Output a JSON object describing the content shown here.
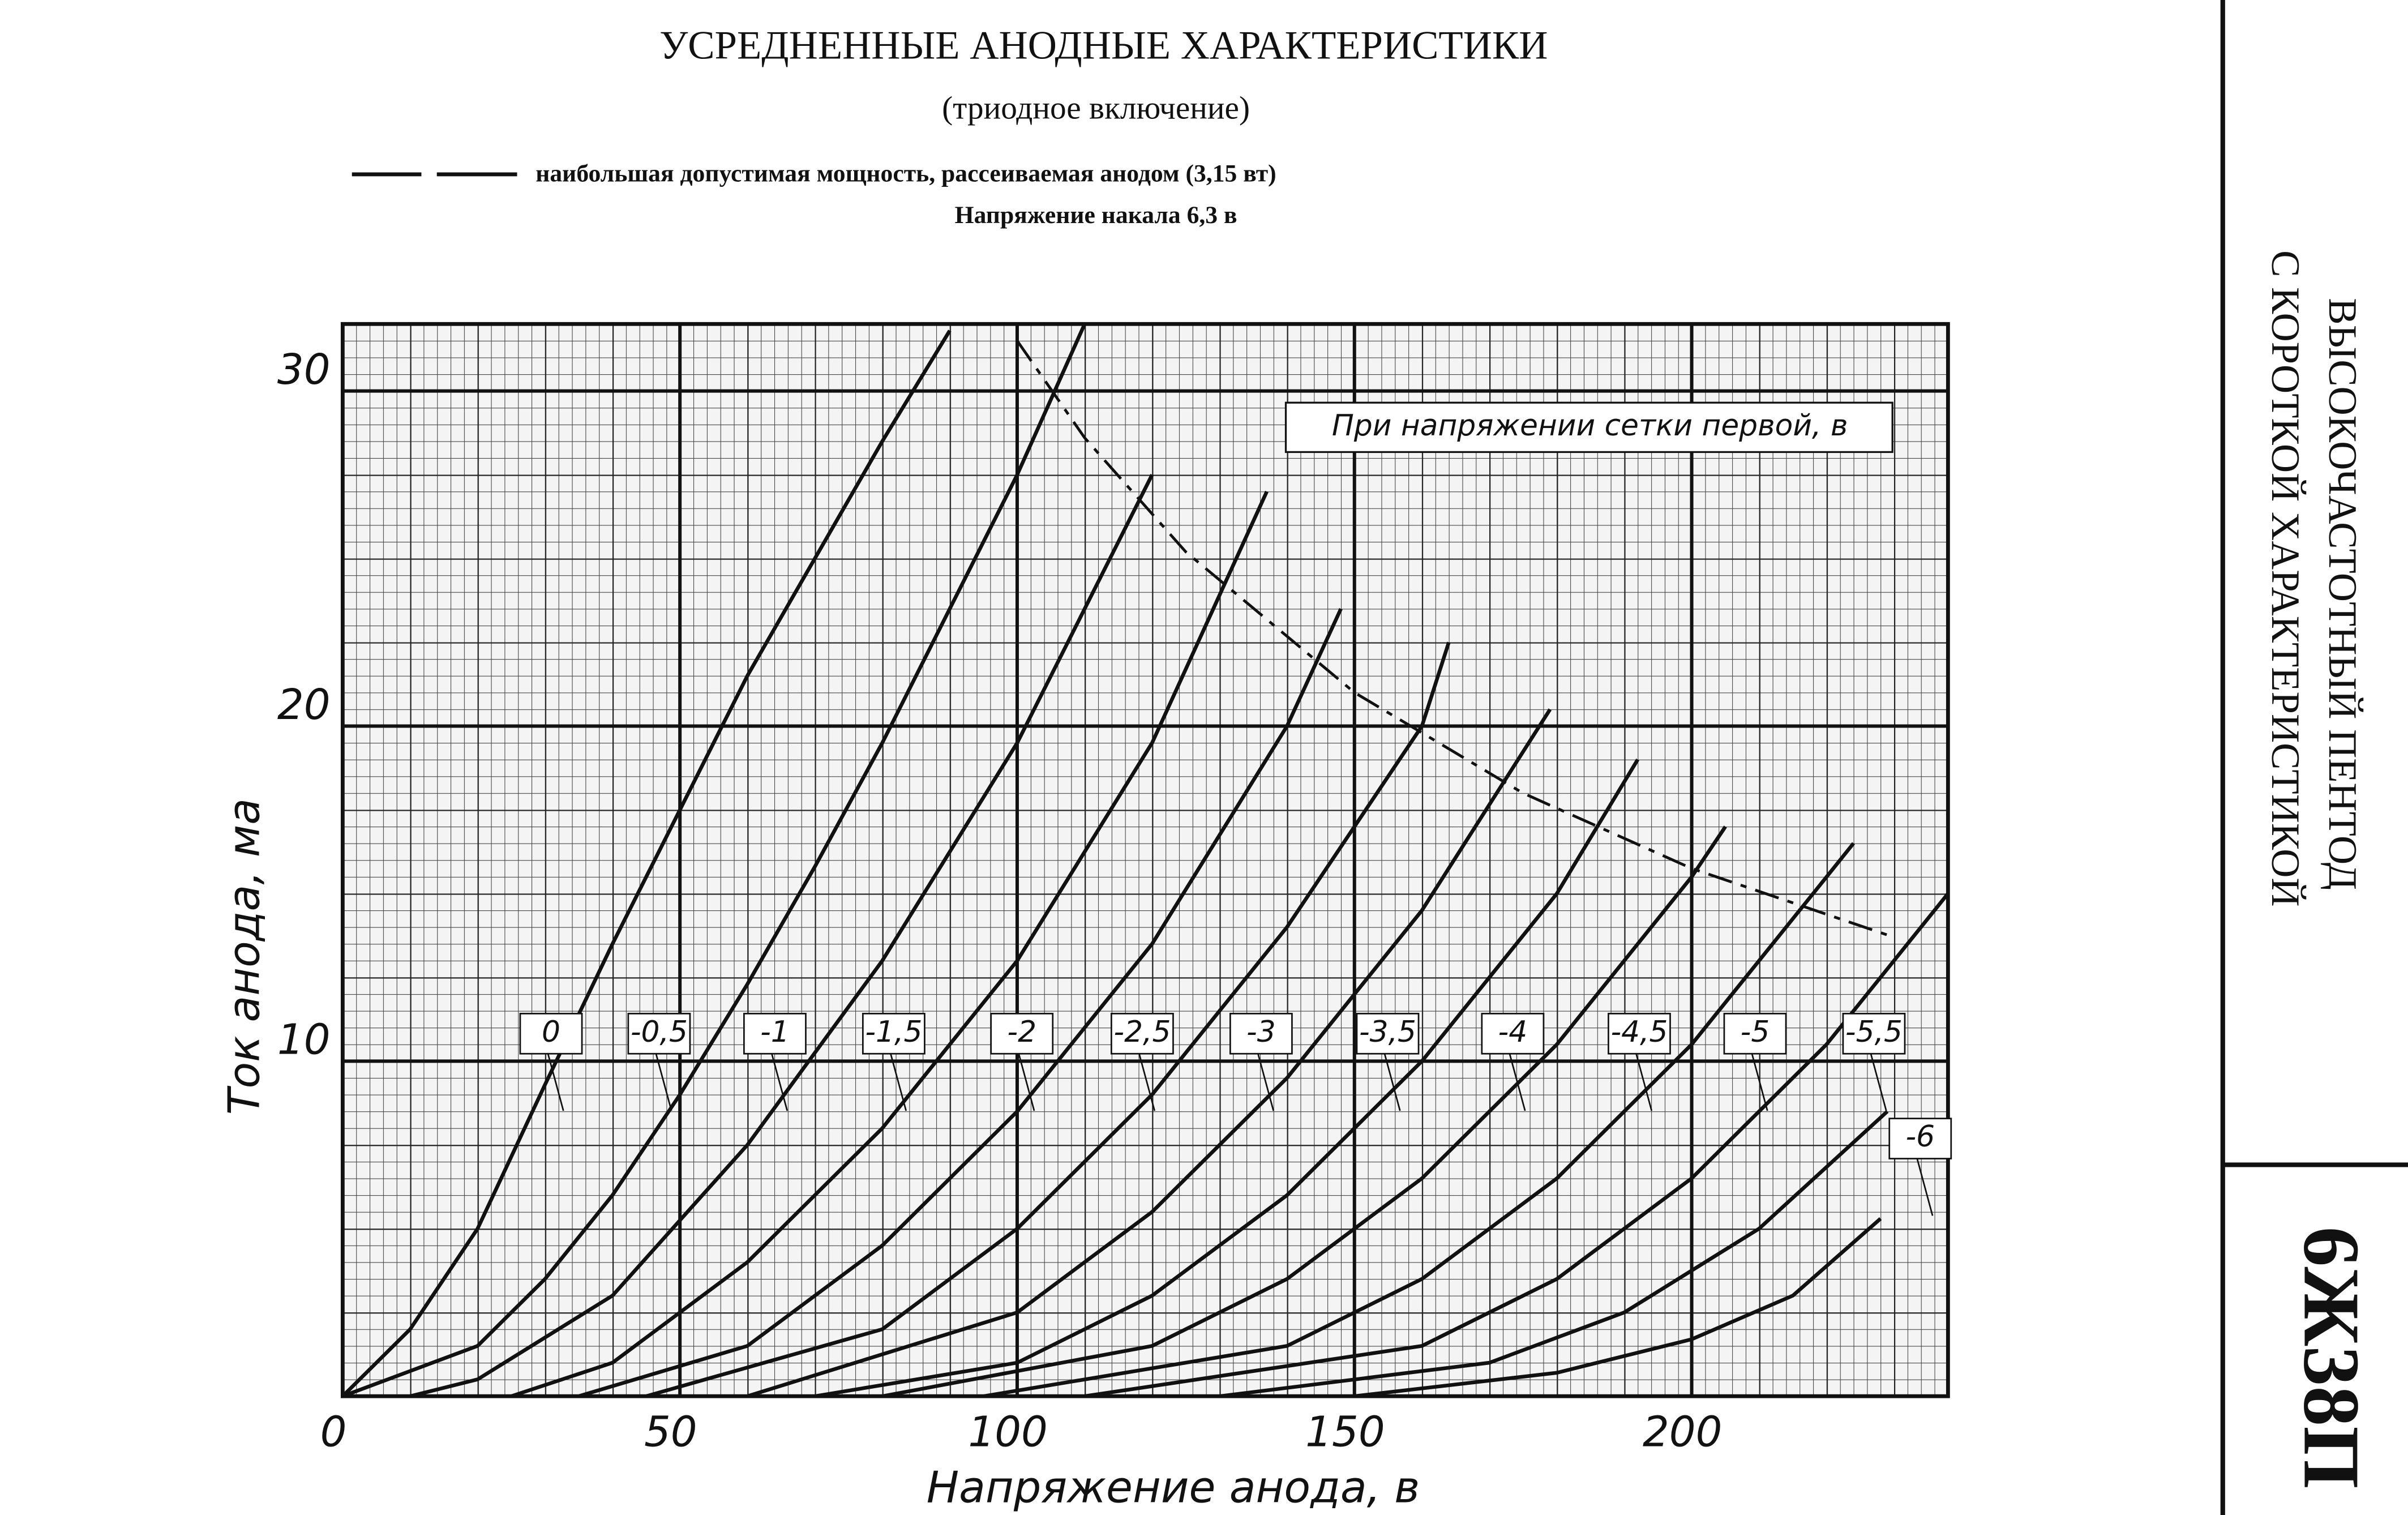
{
  "header": {
    "side_title_1": "ВЫСОКОЧАСТОТНЫЙ ПЕНТОД",
    "side_title_2": "С КОРОТКОЙ ХАРАКТЕРИСТИКОЙ",
    "tube": "6Ж38П"
  },
  "chart_data": {
    "type": "line",
    "title": "УСРЕДНЕННЫЕ АНОДНЫЕ ХАРАКТЕРИСТИКИ",
    "subtitle": "(триодное включение)",
    "annotations": [
      "Напряжение накала 6,3 в",
      "При напряжении сетки первой, в"
    ],
    "x_label": "Напряжение анода, в",
    "y_label": "Ток анода, ма",
    "xlim": [
      0,
      238
    ],
    "ylim": [
      0,
      32
    ],
    "xticks": [
      0,
      50,
      100,
      150,
      200
    ],
    "yticks": [
      10,
      20,
      30
    ],
    "grid": true,
    "series": [
      {
        "name": "0",
        "color": "#111",
        "x": [
          0,
          10,
          20,
          30,
          40,
          50,
          60,
          70,
          80,
          90
        ],
        "values": [
          0,
          2,
          5,
          9.3,
          13.5,
          17.5,
          21.5,
          25,
          28.5,
          31.8
        ]
      },
      {
        "name": "-0,5",
        "color": "#111",
        "x": [
          0,
          20,
          30,
          40,
          50,
          60,
          70,
          80,
          90,
          100,
          110
        ],
        "values": [
          0,
          1.5,
          3.5,
          6,
          9,
          12.3,
          15.8,
          19.5,
          23.5,
          27.5,
          32
        ]
      },
      {
        "name": "-1",
        "color": "#111",
        "x": [
          10,
          20,
          40,
          60,
          80,
          100,
          120
        ],
        "values": [
          0,
          0.5,
          3,
          7.5,
          13,
          19.5,
          27.5
        ]
      },
      {
        "name": "-1,5",
        "color": "#111",
        "x": [
          25,
          40,
          60,
          80,
          100,
          120,
          137
        ],
        "values": [
          0,
          1,
          4,
          8,
          13,
          19.5,
          27
        ]
      },
      {
        "name": "-2",
        "color": "#111",
        "x": [
          35,
          60,
          80,
          100,
          120,
          140,
          148
        ],
        "values": [
          0,
          1.5,
          4.5,
          8.5,
          13.5,
          20,
          23.5
        ]
      },
      {
        "name": "-2,5",
        "color": "#111",
        "x": [
          45,
          80,
          100,
          120,
          140,
          160,
          164
        ],
        "values": [
          0,
          2,
          5,
          9,
          14,
          20,
          22.5
        ]
      },
      {
        "name": "-3",
        "color": "#111",
        "x": [
          60,
          100,
          120,
          140,
          160,
          179
        ],
        "values": [
          0,
          2.5,
          5.5,
          9.5,
          14.5,
          20.5
        ]
      },
      {
        "name": "-3,5",
        "color": "#111",
        "x": [
          70,
          100,
          120,
          140,
          160,
          180,
          192
        ],
        "values": [
          0,
          1,
          3,
          6,
          10,
          15,
          19
        ]
      },
      {
        "name": "-4",
        "color": "#111",
        "x": [
          80,
          120,
          140,
          160,
          180,
          200,
          205
        ],
        "values": [
          0,
          1.5,
          3.5,
          6.5,
          10.5,
          15.5,
          17
        ]
      },
      {
        "name": "-4,5",
        "color": "#111",
        "x": [
          95,
          140,
          160,
          180,
          200,
          220,
          224
        ],
        "values": [
          0,
          1.5,
          3.5,
          6.5,
          10.5,
          15.5,
          16.5
        ]
      },
      {
        "name": "-5",
        "color": "#111",
        "x": [
          110,
          160,
          180,
          200,
          220,
          238
        ],
        "values": [
          0,
          1.5,
          3.5,
          6.5,
          10.5,
          15
        ]
      },
      {
        "name": "-5,5",
        "color": "#111",
        "x": [
          130,
          170,
          190,
          210,
          229
        ],
        "values": [
          0,
          1,
          2.5,
          5,
          8.5
        ]
      },
      {
        "name": "-6",
        "color": "#111",
        "x": [
          150,
          180,
          200,
          215,
          228
        ],
        "values": [
          0,
          0.7,
          1.7,
          3,
          5.3
        ]
      },
      {
        "name": "наибольшая допустимая мощность, рассеиваемая анодом (3,15 вт)",
        "color": "#111",
        "style": "dashed",
        "x": [
          100,
          110,
          125,
          150,
          175,
          200,
          230
        ],
        "values": [
          31.5,
          28.6,
          25.2,
          21,
          18,
          15.75,
          13.7
        ]
      }
    ]
  }
}
